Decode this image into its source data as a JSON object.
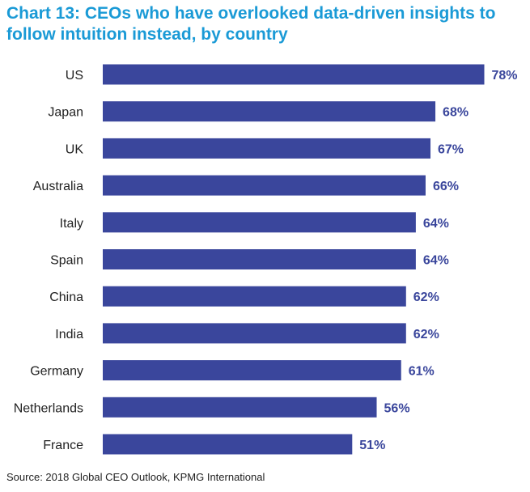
{
  "chart_data": {
    "type": "bar",
    "orientation": "horizontal",
    "title": "Chart 13: CEOs who have overlooked data-driven insights to follow intuition instead, by country",
    "categories": [
      "US",
      "Japan",
      "UK",
      "Australia",
      "Italy",
      "Spain",
      "China",
      "India",
      "Germany",
      "Netherlands",
      "France"
    ],
    "values": [
      78,
      68,
      67,
      66,
      64,
      64,
      62,
      62,
      61,
      56,
      51
    ],
    "value_labels": [
      "78%",
      "68%",
      "67%",
      "66%",
      "64%",
      "64%",
      "62%",
      "62%",
      "61%",
      "56%",
      "51%"
    ],
    "xlabel": "",
    "ylabel": "",
    "xlim": [
      0,
      100
    ],
    "grid": false,
    "legend": "none",
    "colors": {
      "bar": "#3a469c",
      "title": "#1a9ad6",
      "value_label": "#3a469c",
      "category_label": "#222222"
    }
  },
  "footer": {
    "source": "Source: 2018 Global CEO Outlook, KPMG International"
  }
}
